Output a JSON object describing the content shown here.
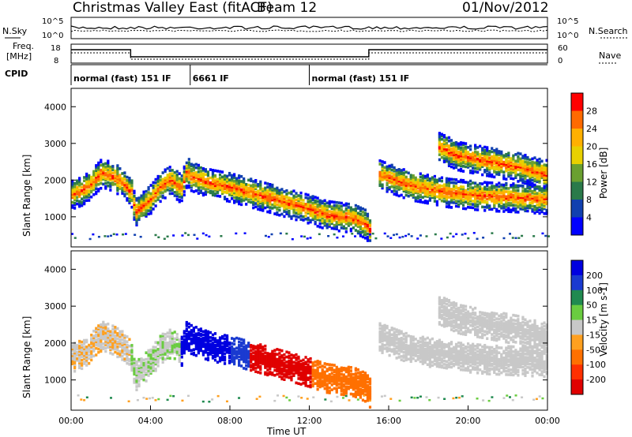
{
  "header": {
    "title": "Christmas Valley East (fitACF)",
    "beam": "Beam 12",
    "date": "01/Nov/2012"
  },
  "params": {
    "nsky_label": "N.Sky",
    "nsearch_label": "N.Search",
    "freq_label_line1": "Freq.",
    "freq_label_line2": "[MHz]",
    "nave_label": "Nave",
    "cpid_label": "CPID",
    "noise_ticks_left": [
      "10^5",
      "10^0"
    ],
    "noise_ticks_right": [
      "10^5",
      "10^0"
    ],
    "freq_ticks": [
      "18",
      "8"
    ],
    "nave_ticks": [
      "60",
      "0"
    ]
  },
  "cpid_segments": [
    {
      "label": "normal (fast) 151 IF",
      "start": 0
    },
    {
      "label": "6661 IF",
      "start": 6
    },
    {
      "label": "normal (fast) 151 IF",
      "start": 12
    }
  ],
  "chart_data": [
    {
      "type": "heatmap",
      "title": "Power",
      "ylabel": "Slant Range [km]",
      "xlabel": "Time UT",
      "xlim": [
        0,
        24
      ],
      "ylim": [
        180,
        4500
      ],
      "x_ticks": [
        "00:00",
        "04:00",
        "08:00",
        "12:00",
        "16:00",
        "20:00",
        "00:00"
      ],
      "y_ticks": [
        "1000",
        "2000",
        "3000",
        "4000"
      ],
      "colorbar": {
        "label": "Power [dB]",
        "ticks": [
          "28",
          "24",
          "20",
          "16",
          "12",
          "8",
          "4"
        ],
        "colors": [
          "#ff0000",
          "#ff6a00",
          "#ffb000",
          "#e8d000",
          "#6aa030",
          "#2a7a4a",
          "#1040b0",
          "#0000ff"
        ]
      },
      "traces": [
        {
          "name": "main",
          "x": [
            0,
            0.5,
            1,
            1.5,
            2,
            2.5,
            3,
            3.2,
            3.6,
            4,
            4.5,
            5,
            5.5,
            5.8,
            6,
            6.5,
            7,
            8,
            9,
            10,
            11,
            12,
            12.8,
            13.5,
            14.2,
            14.8,
            15
          ],
          "y": [
            1650,
            1750,
            1950,
            2250,
            2150,
            2000,
            1700,
            1150,
            1350,
            1550,
            1900,
            2050,
            1800,
            2300,
            2150,
            2050,
            1950,
            1850,
            1700,
            1550,
            1400,
            1250,
            1100,
            1050,
            1000,
            850,
            700
          ]
        },
        {
          "name": "upper",
          "x": [
            18.5,
            19.5,
            20.5,
            21.5,
            22.5,
            23.5,
            24
          ],
          "y": [
            2950,
            2700,
            2600,
            2500,
            2400,
            2250,
            2200
          ]
        },
        {
          "name": "lower",
          "x": [
            15.5,
            17,
            18,
            19,
            20,
            21,
            22,
            23,
            24
          ],
          "y": [
            2200,
            1900,
            1800,
            1700,
            1650,
            1600,
            1580,
            1550,
            1520
          ]
        }
      ]
    },
    {
      "type": "heatmap",
      "title": "Velocity",
      "ylabel": "Slant Range [km]",
      "xlabel": "Time UT",
      "xlim": [
        0,
        24
      ],
      "ylim": [
        180,
        4500
      ],
      "x_ticks": [
        "00:00",
        "04:00",
        "08:00",
        "12:00",
        "16:00",
        "20:00",
        "00:00"
      ],
      "y_ticks": [
        "1000",
        "2000",
        "3000",
        "4000"
      ],
      "colorbar": {
        "label": "Velocity [m s-1]",
        "ticks": [
          "200",
          "100",
          "50",
          "15",
          "-15",
          "-50",
          "-100",
          "-200"
        ],
        "colors": [
          "#0000e0",
          "#1a3ad0",
          "#208a50",
          "#6acc40",
          "#c8c8c8",
          "#ffa020",
          "#ff7000",
          "#ff3000",
          "#e00000"
        ]
      },
      "regions": [
        {
          "x": [
            0,
            3
          ],
          "v": -10
        },
        {
          "x": [
            3,
            5.5
          ],
          "v": 10
        },
        {
          "x": [
            5.5,
            8
          ],
          "v": 220
        },
        {
          "x": [
            8,
            9
          ],
          "v": 120
        },
        {
          "x": [
            9,
            12
          ],
          "v": -200
        },
        {
          "x": [
            12,
            15
          ],
          "v": -80
        },
        {
          "x": [
            15,
            24
          ],
          "v": 0
        }
      ]
    }
  ],
  "footer": {
    "xaxis_label": "Time UT"
  }
}
